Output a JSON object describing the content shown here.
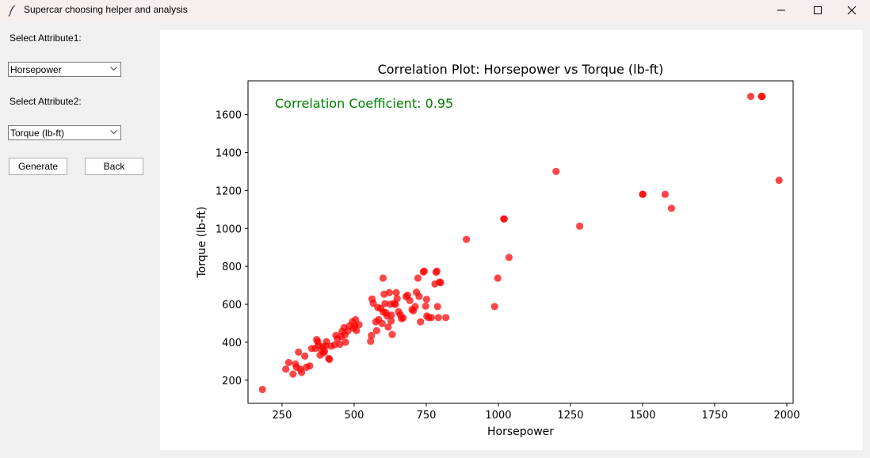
{
  "window": {
    "title": "Supercar choosing helper and analysis",
    "app_icon": "feather-icon",
    "controls": [
      "minimize-icon",
      "maximize-icon",
      "close-icon"
    ]
  },
  "sidebar": {
    "attr1_label": "Select Attribute1:",
    "attr1_value": "Horsepower",
    "attr2_label": "Select Attribute2:",
    "attr2_value": "Torque (lb-ft)",
    "generate_label": "Generate",
    "back_label": "Back"
  },
  "chart_data": {
    "type": "scatter",
    "title": "Correlation Plot: Horsepower vs Torque (lb-ft)",
    "xlabel": "Horsepower",
    "ylabel": "Torque (lb-ft)",
    "annotation": "Correlation Coefficient: 0.95",
    "annotation_color": "#008000",
    "point_color": "#ff0000",
    "xlim": [
      132,
      2022
    ],
    "ylim": [
      78,
      1778
    ],
    "xticks": [
      250,
      500,
      750,
      1000,
      1250,
      1500,
      1750,
      2000
    ],
    "yticks": [
      200,
      400,
      600,
      800,
      1000,
      1200,
      1400,
      1600
    ],
    "grid": false,
    "points": [
      [
        182,
        151
      ],
      [
        263,
        258
      ],
      [
        273,
        293
      ],
      [
        296,
        285
      ],
      [
        288,
        232
      ],
      [
        300,
        268
      ],
      [
        307,
        348
      ],
      [
        313,
        258
      ],
      [
        318,
        241
      ],
      [
        329,
        327
      ],
      [
        334,
        268
      ],
      [
        346,
        275
      ],
      [
        353,
        367
      ],
      [
        365,
        367
      ],
      [
        370,
        414
      ],
      [
        374,
        403
      ],
      [
        376,
        386
      ],
      [
        382,
        332
      ],
      [
        387,
        360
      ],
      [
        391,
        375
      ],
      [
        394,
        345
      ],
      [
        397,
        353
      ],
      [
        401,
        382
      ],
      [
        404,
        403
      ],
      [
        412,
        315
      ],
      [
        414,
        310
      ],
      [
        420,
        379
      ],
      [
        432,
        386
      ],
      [
        437,
        436
      ],
      [
        442,
        418
      ],
      [
        450,
        389
      ],
      [
        455,
        430
      ],
      [
        458,
        456
      ],
      [
        465,
        477
      ],
      [
        468,
        439
      ],
      [
        470,
        400
      ],
      [
        478,
        460
      ],
      [
        484,
        486
      ],
      [
        494,
        508
      ],
      [
        497,
        474
      ],
      [
        502,
        486
      ],
      [
        505,
        519
      ],
      [
        508,
        461
      ],
      [
        517,
        492
      ],
      [
        557,
        405
      ],
      [
        560,
        435
      ],
      [
        562,
        628
      ],
      [
        566,
        605
      ],
      [
        575,
        508
      ],
      [
        578,
        461
      ],
      [
        582,
        583
      ],
      [
        585,
        519
      ],
      [
        592,
        579
      ],
      [
        597,
        498
      ],
      [
        600,
        738
      ],
      [
        601,
        560
      ],
      [
        604,
        653
      ],
      [
        607,
        603
      ],
      [
        610,
        556
      ],
      [
        614,
        539
      ],
      [
        618,
        480
      ],
      [
        622,
        662
      ],
      [
        626,
        600
      ],
      [
        628,
        512
      ],
      [
        629,
        543
      ],
      [
        632,
        441
      ],
      [
        639,
        605
      ],
      [
        643,
        599
      ],
      [
        646,
        662
      ],
      [
        649,
        630
      ],
      [
        654,
        561
      ],
      [
        660,
        545
      ],
      [
        664,
        525
      ],
      [
        670,
        528
      ],
      [
        680,
        640
      ],
      [
        685,
        648
      ],
      [
        693,
        620
      ],
      [
        701,
        573
      ],
      [
        705,
        566
      ],
      [
        712,
        588
      ],
      [
        716,
        664
      ],
      [
        721,
        738
      ],
      [
        725,
        642
      ],
      [
        730,
        508
      ],
      [
        740,
        770
      ],
      [
        743,
        775
      ],
      [
        748,
        590
      ],
      [
        751,
        626
      ],
      [
        752,
        538
      ],
      [
        758,
        530
      ],
      [
        768,
        530
      ],
      [
        780,
        707
      ],
      [
        784,
        769
      ],
      [
        787,
        775
      ],
      [
        789,
        588
      ],
      [
        792,
        530
      ],
      [
        796,
        717
      ],
      [
        800,
        714
      ],
      [
        818,
        530
      ],
      [
        889,
        942
      ],
      [
        987,
        588
      ],
      [
        998,
        738
      ],
      [
        1019,
        1050
      ],
      [
        1020,
        1050
      ],
      [
        1037,
        847
      ],
      [
        1200,
        1300
      ],
      [
        1282,
        1012
      ],
      [
        1500,
        1180
      ],
      [
        1501,
        1180
      ],
      [
        1578,
        1180
      ],
      [
        1600,
        1106
      ],
      [
        1875,
        1696
      ],
      [
        1912,
        1696
      ],
      [
        1915,
        1696
      ],
      [
        1973,
        1254
      ]
    ]
  }
}
